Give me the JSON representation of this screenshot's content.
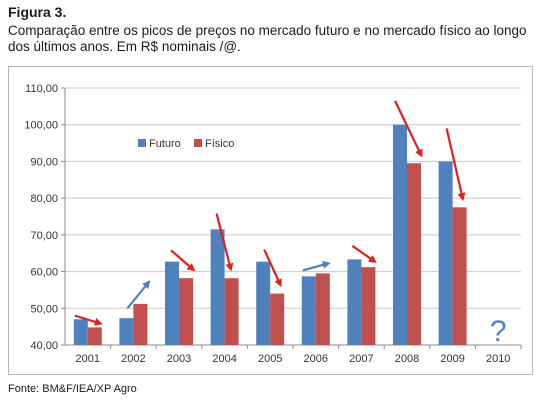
{
  "figure": {
    "label": "Figura 3.",
    "caption": "Comparação entre os picos de preços no mercado futuro e no mercado físico ao longo dos últimos anos. Em R$ nominais /@.",
    "source": "Fonte: BM&F/IEA/XP Agro"
  },
  "chart_data": {
    "type": "bar",
    "categories": [
      "2001",
      "2002",
      "2003",
      "2004",
      "2005",
      "2006",
      "2007",
      "2008",
      "2009",
      "2010"
    ],
    "series": [
      {
        "name": "Futuro",
        "color": "#4f81bd",
        "values": [
          47.0,
          47.3,
          62.7,
          71.5,
          62.7,
          58.7,
          63.3,
          100.0,
          90.0,
          null
        ]
      },
      {
        "name": "Físico",
        "color": "#c0504d",
        "values": [
          44.8,
          51.2,
          58.2,
          58.2,
          54.0,
          59.5,
          61.2,
          89.5,
          77.5,
          null
        ]
      }
    ],
    "ylim": [
      40,
      110
    ],
    "yticks": [
      "40,00",
      "50,00",
      "60,00",
      "70,00",
      "80,00",
      "90,00",
      "100,00",
      "110,00"
    ],
    "legend_position": "upper-left-inside",
    "gridlines": true,
    "annotations": {
      "unknown_marker": "?",
      "arrows": [
        {
          "category": "2001",
          "direction": "down",
          "color": "#e02020"
        },
        {
          "category": "2002",
          "direction": "up",
          "color": "#4f81bd"
        },
        {
          "category": "2003",
          "direction": "down",
          "color": "#e02020"
        },
        {
          "category": "2004",
          "direction": "down",
          "color": "#e02020"
        },
        {
          "category": "2005",
          "direction": "down",
          "color": "#e02020"
        },
        {
          "category": "2006",
          "direction": "up",
          "color": "#4f81bd"
        },
        {
          "category": "2007",
          "direction": "down",
          "color": "#e02020"
        },
        {
          "category": "2008",
          "direction": "down",
          "color": "#e02020"
        },
        {
          "category": "2009",
          "direction": "down",
          "color": "#e02020"
        }
      ]
    }
  }
}
